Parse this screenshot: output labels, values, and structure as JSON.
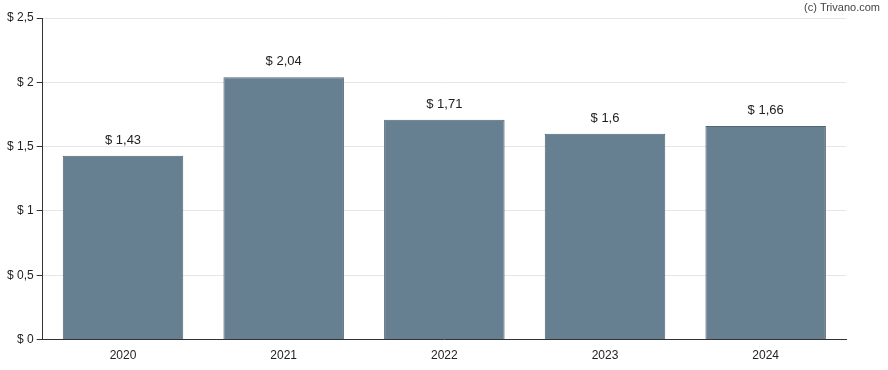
{
  "chart_data": {
    "type": "bar",
    "annotations": [
      "(c) Trivano.com"
    ],
    "categories": [
      "2020",
      "2021",
      "2022",
      "2023",
      "2024"
    ],
    "values": [
      1.43,
      2.04,
      1.71,
      1.6,
      1.66
    ],
    "value_labels": [
      "$ 1,43",
      "$ 2,04",
      "$ 1,71",
      "$ 1,6",
      "$ 1,66"
    ],
    "data_labels": true,
    "color": "#667f91",
    "ylim": [
      0,
      2.5
    ],
    "yticks": [
      {
        "value": 0,
        "label": "$ 0"
      },
      {
        "value": 0.5,
        "label": "$ 0,5"
      },
      {
        "value": 1,
        "label": "$ 1"
      },
      {
        "value": 1.5,
        "label": "$ 1,5"
      },
      {
        "value": 2,
        "label": "$ 2"
      },
      {
        "value": 2.5,
        "label": "$ 2,5"
      }
    ],
    "grid": true
  }
}
